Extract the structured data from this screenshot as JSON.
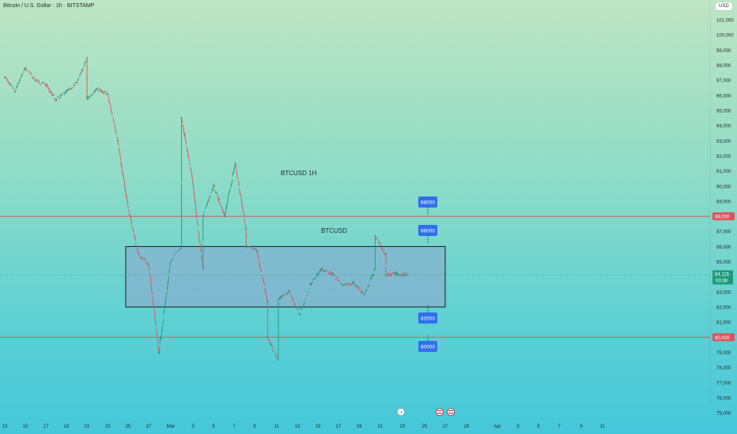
{
  "header": {
    "symbol_title": "Bitcoin / U.S. Dollar · 1h · BITSTAMP",
    "currency": "USD"
  },
  "annotations": {
    "title": "BTCUSD  1H",
    "range_label": "BTCUSD",
    "targets": [
      "88000",
      "86000",
      "82000",
      "80000"
    ]
  },
  "chart_data": {
    "type": "line",
    "title": "",
    "xlabel": "",
    "ylabel": "",
    "ylim": [
      75000,
      101000
    ],
    "x_ticks": [
      "13",
      "15",
      "17",
      "19",
      "21",
      "23",
      "25",
      "27",
      "Mar",
      "3",
      "5",
      "7",
      "9",
      "11",
      "13",
      "15",
      "17",
      "19",
      "21",
      "23",
      "25",
      "27",
      "29",
      "Apr",
      "3",
      "5",
      "7",
      "9",
      "11"
    ],
    "y_ticks": [
      "101,000",
      "100,000",
      "99,000",
      "98,000",
      "97,000",
      "96,000",
      "95,000",
      "94,000",
      "93,000",
      "92,000",
      "91,000",
      "90,000",
      "89,000",
      "88,000",
      "87,000",
      "86,000",
      "85,000",
      "84,000",
      "83,000",
      "82,000",
      "81,000",
      "80,000",
      "79,000",
      "78,000",
      "77,000",
      "76,000",
      "75,000"
    ],
    "series": [
      {
        "values": [
          {
            "x": "Feb 13",
            "y": 97200
          },
          {
            "x": "Feb 14",
            "y": 96300
          },
          {
            "x": "Feb 15",
            "y": 97800
          },
          {
            "x": "Feb 16",
            "y": 97000
          },
          {
            "x": "Feb 17",
            "y": 96700
          },
          {
            "x": "Feb 18",
            "y": 95700
          },
          {
            "x": "Feb 19",
            "y": 96200
          },
          {
            "x": "Feb 20",
            "y": 96800
          },
          {
            "x": "Feb 21",
            "y": 98500
          },
          {
            "x": "Feb 21",
            "y": 95800
          },
          {
            "x": "Feb 22",
            "y": 96400
          },
          {
            "x": "Feb 23",
            "y": 96100
          },
          {
            "x": "Feb 24",
            "y": 93000
          },
          {
            "x": "Feb 25",
            "y": 88600
          },
          {
            "x": "Feb 26",
            "y": 85500
          },
          {
            "x": "Feb 27",
            "y": 84800
          },
          {
            "x": "Feb 28",
            "y": 79000
          },
          {
            "x": "Mar 1",
            "y": 85000
          },
          {
            "x": "Mar 2",
            "y": 86000
          },
          {
            "x": "Mar 2",
            "y": 94500
          },
          {
            "x": "Mar 3",
            "y": 90500
          },
          {
            "x": "Mar 4",
            "y": 84500
          },
          {
            "x": "Mar 4",
            "y": 88000
          },
          {
            "x": "Mar 5",
            "y": 90000
          },
          {
            "x": "Mar 6",
            "y": 88000
          },
          {
            "x": "Mar 7",
            "y": 91500
          },
          {
            "x": "Mar 8",
            "y": 87200
          },
          {
            "x": "Mar 8",
            "y": 86000
          },
          {
            "x": "Mar 9",
            "y": 85700
          },
          {
            "x": "Mar 10",
            "y": 82400
          },
          {
            "x": "Mar 10",
            "y": 80000
          },
          {
            "x": "Mar 11",
            "y": 78500
          },
          {
            "x": "Mar 11",
            "y": 82500
          },
          {
            "x": "Mar 12",
            "y": 83000
          },
          {
            "x": "Mar 13",
            "y": 81500
          },
          {
            "x": "Mar 14",
            "y": 83500
          },
          {
            "x": "Mar 15",
            "y": 84500
          },
          {
            "x": "Mar 16",
            "y": 84200
          },
          {
            "x": "Mar 17",
            "y": 83400
          },
          {
            "x": "Mar 18",
            "y": 83600
          },
          {
            "x": "Mar 19",
            "y": 82800
          },
          {
            "x": "Mar 20",
            "y": 84500
          },
          {
            "x": "Mar 20",
            "y": 86700
          },
          {
            "x": "Mar 21",
            "y": 85500
          },
          {
            "x": "Mar 21",
            "y": 84100
          },
          {
            "x": "Mar 22",
            "y": 84200
          },
          {
            "x": "Mar 23",
            "y": 84115
          }
        ]
      }
    ],
    "horizontal_levels": [
      {
        "value": 88000,
        "label": "88,000",
        "color": "#e0525a"
      },
      {
        "value": 80000,
        "label": "80,000",
        "color": "#e0525a"
      }
    ],
    "current_price": {
      "label": "84,115",
      "countdown": "03:38",
      "value": 84115,
      "color": "#1e9c7a"
    },
    "range_box": {
      "y_top": 86000,
      "y_bottom": 82000,
      "x_start": "Feb 25",
      "x_end": "Mar 27"
    }
  },
  "colors": {
    "box_fill": "#86b2cf",
    "box_border": "#1a1a1a",
    "label_bg": "#2f6fed",
    "line_up": "#1e9c7a",
    "line_down": "#e0525a"
  }
}
